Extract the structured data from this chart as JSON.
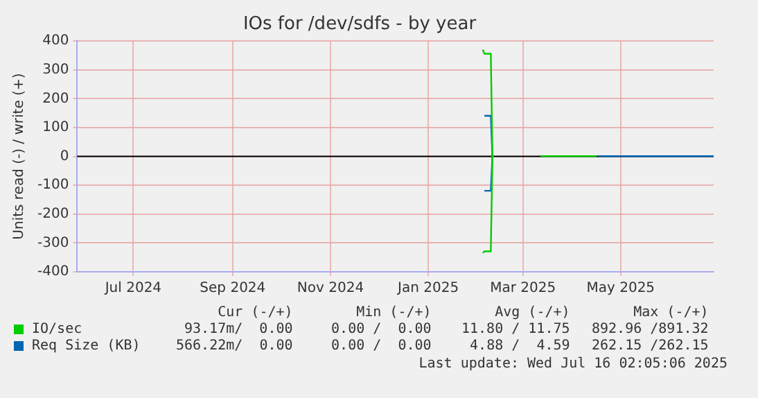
{
  "chart_data": {
    "type": "line",
    "title": "IOs for /dev/sdfs - by year",
    "ylabel": "Units read (-) / write (+)",
    "xlim": [
      "2024-05-27",
      "2025-06-28"
    ],
    "xticks": [
      {
        "value": "2024-07-01",
        "label": "Jul 2024"
      },
      {
        "value": "2024-09-01",
        "label": "Sep 2024"
      },
      {
        "value": "2024-11-01",
        "label": "Nov 2024"
      },
      {
        "value": "2025-01-01",
        "label": "Jan 2025"
      },
      {
        "value": "2025-03-01",
        "label": "Mar 2025"
      },
      {
        "value": "2025-05-01",
        "label": "May 2025"
      }
    ],
    "ylim": [
      -400,
      400
    ],
    "yticks": [
      -400,
      -300,
      -200,
      -100,
      0,
      100,
      200,
      300,
      400
    ],
    "grid": true,
    "legend": "bottom",
    "marker": "none",
    "line_style": "solid",
    "ref_lines": [
      {
        "axis": "y",
        "value": 0,
        "color": "#000000"
      }
    ],
    "series": [
      {
        "name": "IO/sec",
        "color": "#00cc00",
        "x": [
          "2025-02-04",
          "2025-02-05",
          "2025-02-09",
          "2025-02-10",
          "2025-02-11",
          "2025-02-20",
          "2025-03-12",
          "2025-04-16"
        ],
        "values": [
          370,
          356,
          356,
          0,
          0,
          null,
          1,
          1
        ]
      },
      {
        "color": "#00cc00",
        "x": [
          "2025-02-04",
          "2025-02-05",
          "2025-02-09",
          "2025-02-10",
          "2025-02-11"
        ],
        "values": [
          -335,
          -329,
          -329,
          0,
          0
        ]
      },
      {
        "name": "Req Size (KB)",
        "color": "#0066b3",
        "x": [
          "2025-02-05",
          "2025-02-06",
          "2025-02-09",
          "2025-02-10",
          "2025-02-11",
          "2025-02-20",
          "2025-04-17",
          "2025-06-28"
        ],
        "values": [
          141,
          141,
          141,
          0,
          0,
          null,
          1,
          1
        ]
      },
      {
        "color": "#0066b3",
        "x": [
          "2025-02-05",
          "2025-02-06",
          "2025-02-09",
          "2025-02-10",
          "2025-02-11"
        ],
        "values": [
          -119,
          -119,
          -119,
          0,
          0
        ]
      }
    ],
    "annotations": [
      "Cur (-/+)",
      "Min (-/+)",
      "Avg (-/+)",
      "Max (-/+)",
      "93.17m/  0.00",
      "0.00 /  0.00",
      "11.80 / 11.75",
      "892.96 /891.32",
      "566.22m/  0.00",
      "0.00 /  0.00",
      "4.88 /  4.59",
      "262.15 /262.15",
      "Last update: Wed Jul 16 02:05:06 2025"
    ]
  }
}
